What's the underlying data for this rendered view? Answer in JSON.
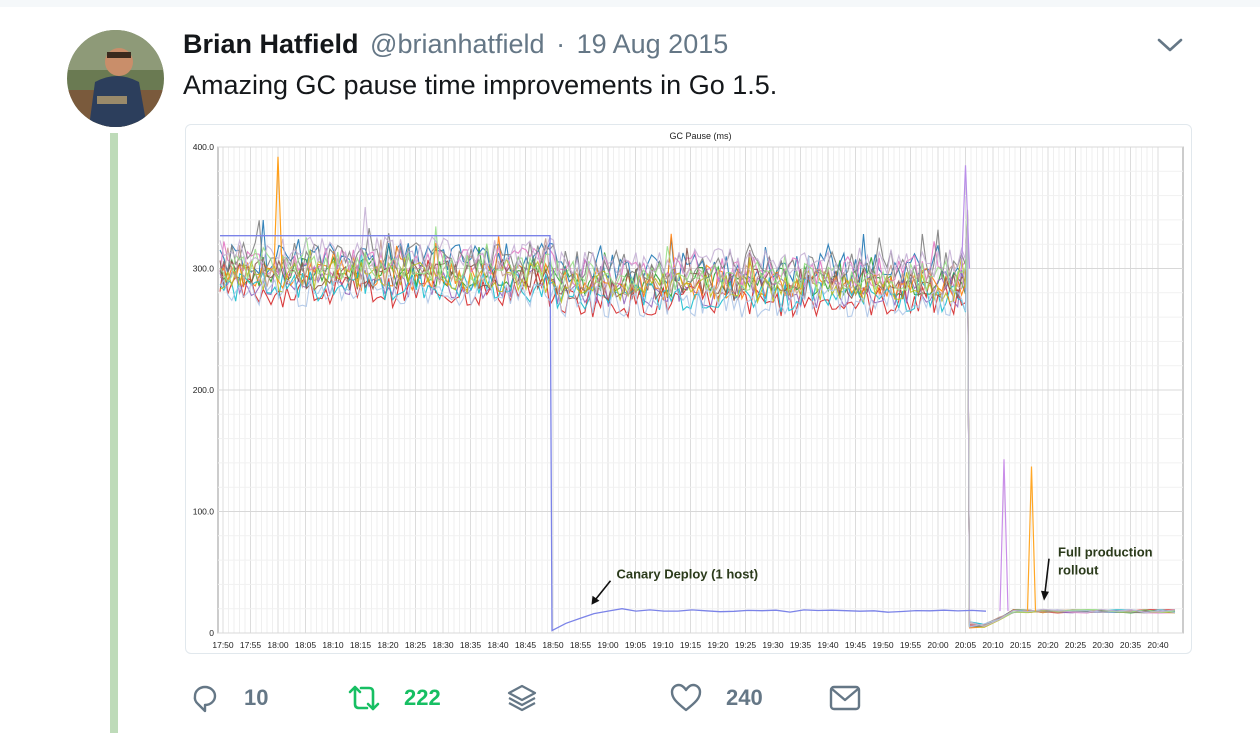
{
  "tweet": {
    "author_name": "Brian Hatfield",
    "handle": "@brianhatfield",
    "separator": "·",
    "date": "19 Aug 2015",
    "text": "Amazing GC pause time improvements in Go 1.5."
  },
  "actions": {
    "reply_count": "10",
    "retweet_count": "222",
    "like_count": "240"
  },
  "icons": {
    "menu": "chevron-down-icon",
    "reply": "reply-icon",
    "retweet": "retweet-icon",
    "stack": "layers-icon",
    "like": "heart-icon",
    "message": "envelope-icon"
  },
  "colors": {
    "retweet": "#17bf63",
    "muted": "#657786",
    "thread_line": "#bedbb9",
    "canary_series": "#7b83e8"
  },
  "chart_data": {
    "type": "line",
    "title": "GC Pause (ms)",
    "ylim": [
      0,
      400
    ],
    "yticks": [
      "0",
      "100.0",
      "200.0",
      "300.0",
      "400.0"
    ],
    "x_ticks": [
      "17:50",
      "17:55",
      "18:00",
      "18:05",
      "18:10",
      "18:15",
      "18:20",
      "18:25",
      "18:30",
      "18:35",
      "18:40",
      "18:45",
      "18:50",
      "18:55",
      "19:00",
      "19:05",
      "19:10",
      "19:15",
      "19:20",
      "19:25",
      "19:30",
      "19:35",
      "19:40",
      "19:45",
      "19:50",
      "19:55",
      "20:00",
      "20:05",
      "20:10",
      "20:15",
      "20:20",
      "20:25",
      "20:30",
      "20:35",
      "20:40"
    ],
    "grid": true,
    "series_colors": [
      "#2ca02c",
      "#d62728",
      "#1f77b4",
      "#9467bd",
      "#ff7f0e",
      "#17becf",
      "#e377c2",
      "#8c564b",
      "#bcbd22",
      "#7f7f7f",
      "#c49c94",
      "#aec7e8",
      "#98df8a",
      "#c5b0d5"
    ],
    "canary": {
      "before_ms": 327,
      "switch_time": "18:50",
      "after_ms": [
        2,
        8,
        12,
        16,
        18,
        20,
        18,
        19,
        18,
        18,
        19
      ]
    },
    "fleet": {
      "before_ms_range": [
        270,
        330
      ],
      "rollout_time": "20:05",
      "after_ms": 18,
      "spikes": [
        {
          "time": "18:00",
          "value": 392
        },
        {
          "time": "20:05",
          "value": 385
        },
        {
          "time": "20:12",
          "value": 143
        },
        {
          "time": "20:17",
          "value": 137
        }
      ]
    },
    "annotations": [
      {
        "text": "Canary Deploy (1 host)",
        "points_to": "18:55"
      },
      {
        "text": "Full production rollout",
        "points_to": "20:20"
      }
    ]
  }
}
